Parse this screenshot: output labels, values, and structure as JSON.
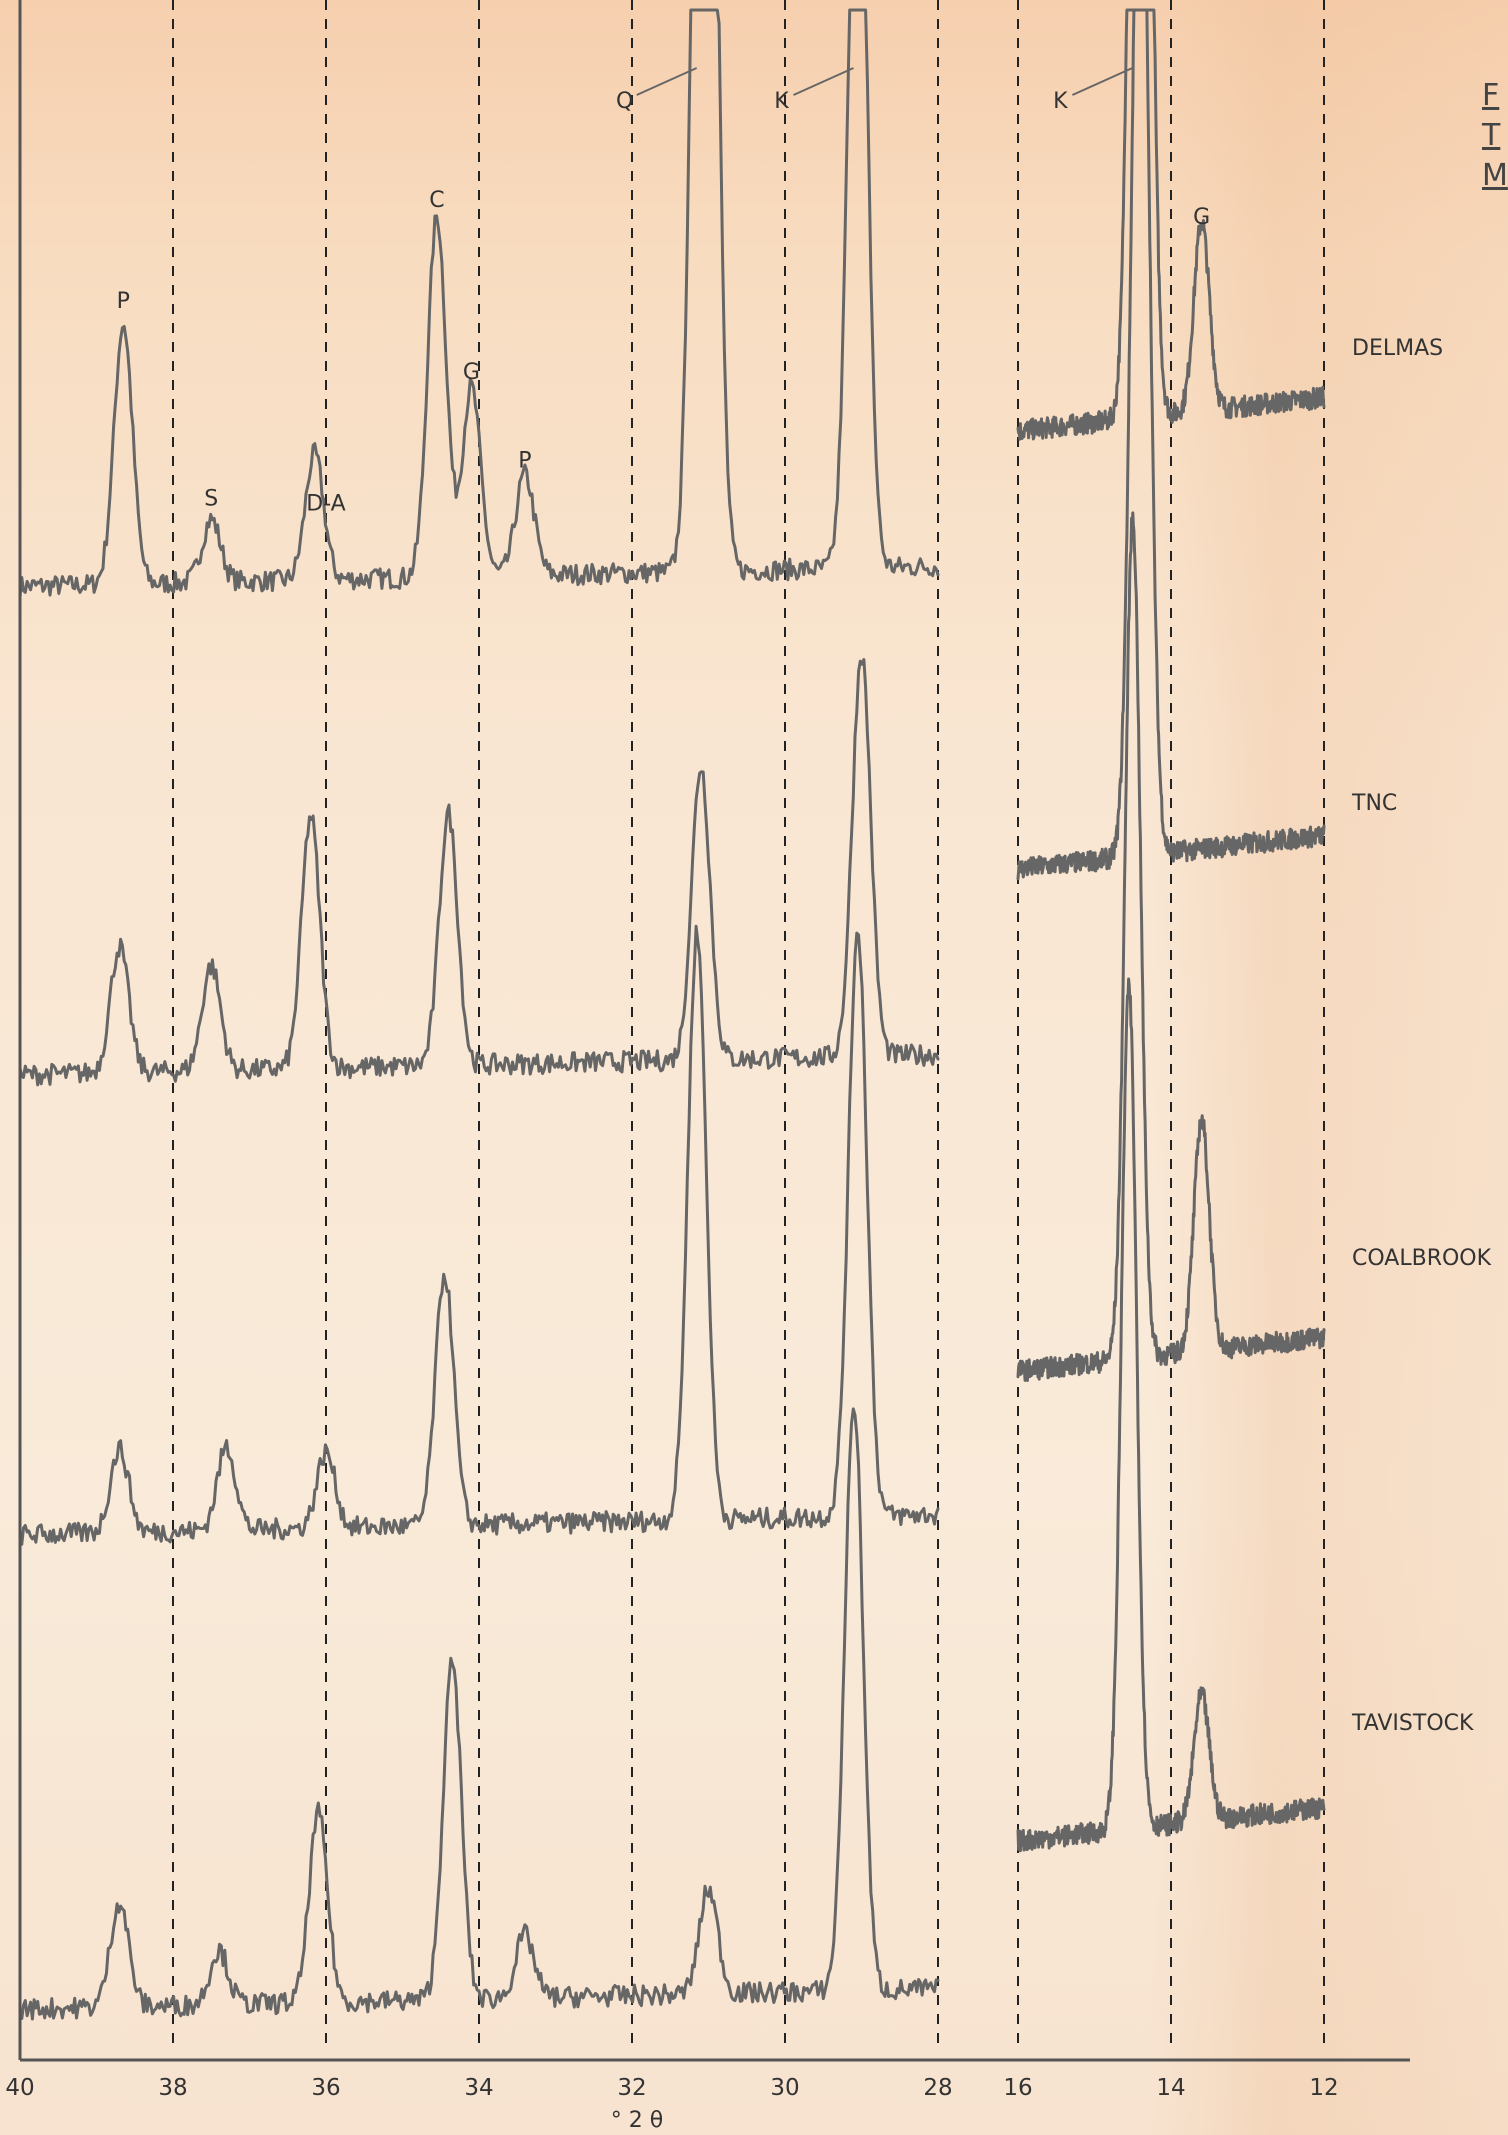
{
  "chart_data": {
    "type": "line",
    "title": "",
    "xlabel": "° 2 θ",
    "ylabel": "",
    "x_axis_reversed": true,
    "broken_axis": true,
    "segments": [
      {
        "name": "left",
        "xlim": [
          40,
          28
        ],
        "ticks": [
          "40",
          "38",
          "36",
          "34",
          "32",
          "30",
          "28"
        ]
      },
      {
        "name": "right",
        "xlim": [
          16,
          12
        ],
        "ticks": [
          "16",
          "14",
          "12"
        ]
      }
    ],
    "tick_labels": [
      "40",
      "38",
      "36",
      "34",
      "32",
      "30",
      "28",
      "16",
      "14",
      "12"
    ],
    "reference_lines_2theta": [
      38,
      36,
      34,
      32,
      30,
      28,
      16,
      14,
      12
    ],
    "grid": false,
    "legend": "none",
    "peak_labels": [
      {
        "text": "P",
        "x": 38.65,
        "series": "DELMAS"
      },
      {
        "text": "S",
        "x": 37.5,
        "series": "DELMAS"
      },
      {
        "text": "D-A",
        "x": 36.0,
        "series": "DELMAS"
      },
      {
        "text": "C",
        "x": 34.55,
        "series": "DELMAS"
      },
      {
        "text": "G",
        "x": 34.1,
        "series": "DELMAS"
      },
      {
        "text": "P",
        "x": 33.4,
        "series": "DELMAS"
      },
      {
        "text": "Q",
        "x": 31.05,
        "series": "DELMAS"
      },
      {
        "text": "K",
        "x": 29.0,
        "series": "DELMAS"
      },
      {
        "text": "K",
        "x": 14.4,
        "series": "DELMAS"
      },
      {
        "text": "G",
        "x": 13.6,
        "series": "DELMAS"
      }
    ],
    "series": [
      {
        "name": "DELMAS",
        "baseline": 0.08,
        "peaks": [
          [
            38.65,
            0.62
          ],
          [
            37.5,
            0.15
          ],
          [
            36.15,
            0.3
          ],
          [
            34.55,
            0.86
          ],
          [
            34.1,
            0.45
          ],
          [
            33.4,
            0.24
          ],
          [
            31.1,
            2.0
          ],
          [
            31.0,
            2.0
          ],
          [
            29.05,
            2.0
          ],
          [
            14.45,
            2.0
          ],
          [
            14.35,
            2.0
          ],
          [
            13.6,
            0.45
          ]
        ],
        "right_baseline": 0.45
      },
      {
        "name": "TNC",
        "baseline": 0.06,
        "peaks": [
          [
            38.7,
            0.3
          ],
          [
            37.5,
            0.25
          ],
          [
            36.2,
            0.6
          ],
          [
            34.4,
            0.6
          ],
          [
            31.1,
            0.7
          ],
          [
            29.0,
            0.96
          ],
          [
            14.45,
            1.5
          ],
          [
            14.35,
            1.5
          ]
        ],
        "right_baseline": 0.55
      },
      {
        "name": "COALBROOK",
        "baseline": 0.06,
        "peaks": [
          [
            38.7,
            0.2
          ],
          [
            37.3,
            0.2
          ],
          [
            36.0,
            0.18
          ],
          [
            34.45,
            0.6
          ],
          [
            31.15,
            1.4
          ],
          [
            29.05,
            1.4
          ],
          [
            14.5,
            2.0
          ],
          [
            13.6,
            0.55
          ]
        ],
        "right_baseline": 0.45
      },
      {
        "name": "TAVISTOCK",
        "baseline": 0.05,
        "peaks": [
          [
            38.7,
            0.25
          ],
          [
            37.4,
            0.13
          ],
          [
            36.1,
            0.45
          ],
          [
            34.35,
            0.8
          ],
          [
            33.4,
            0.15
          ],
          [
            31.0,
            0.25
          ],
          [
            29.1,
            1.4
          ],
          [
            14.55,
            2.0
          ],
          [
            13.6,
            0.3
          ]
        ],
        "right_baseline": 0.45
      }
    ]
  },
  "margin_text": [
    "F",
    "T",
    "M"
  ],
  "colors": {
    "trace": "#666666",
    "guide": "#222222",
    "paper_top": "#f6cfae",
    "paper": "#f9e6d2"
  }
}
